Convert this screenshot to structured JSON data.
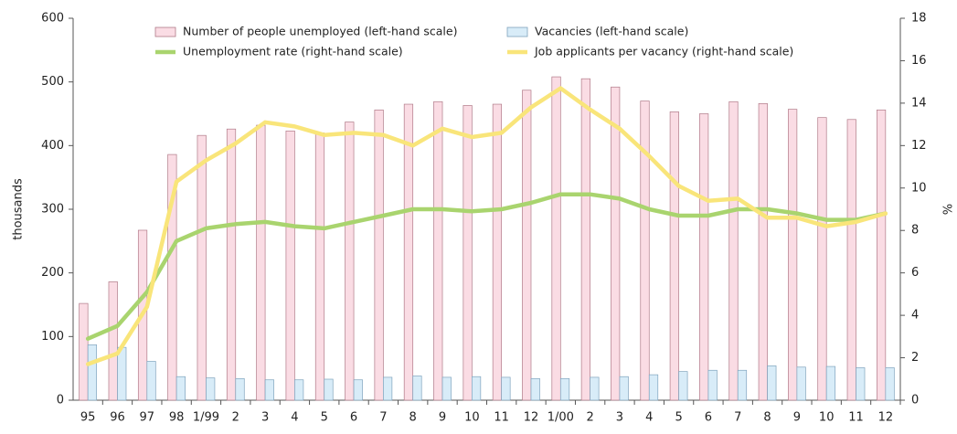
{
  "chart_data": {
    "type": "bar",
    "y_label": "thousands",
    "y2_label": "%",
    "categories": [
      "95",
      "96",
      "97",
      "98",
      "1/99",
      "2",
      "3",
      "4",
      "5",
      "6",
      "7",
      "8",
      "9",
      "10",
      "11",
      "12",
      "1/00",
      "2",
      "3",
      "4",
      "5",
      "6",
      "7",
      "8",
      "9",
      "10",
      "11",
      "12"
    ],
    "series": [
      {
        "name": "Number of people unemployed (left-hand scale)",
        "type": "bar",
        "color": "#fadce4",
        "values": [
          152,
          186,
          267,
          386,
          416,
          426,
          432,
          423,
          420,
          437,
          456,
          465,
          469,
          463,
          465,
          487,
          508,
          505,
          492,
          470,
          453,
          450,
          469,
          466,
          457,
          444,
          441,
          456
        ]
      },
      {
        "name": "Vacancies (left-hand scale)",
        "type": "bar",
        "color": "#d8ecf8",
        "values": [
          87,
          83,
          61,
          37,
          35,
          34,
          32,
          32,
          33,
          32,
          36,
          38,
          36,
          37,
          36,
          34,
          34,
          36,
          37,
          40,
          45,
          47,
          47,
          54,
          52,
          53,
          51,
          51
        ]
      },
      {
        "name": "Unemployment rate (right-hand scale)",
        "type": "line",
        "axis": "y2",
        "color": "#a9d46e",
        "values": [
          2.9,
          3.5,
          5.1,
          7.5,
          8.1,
          8.3,
          8.4,
          8.2,
          8.1,
          8.4,
          8.7,
          9.0,
          9.0,
          8.9,
          9.0,
          9.3,
          9.7,
          9.7,
          9.5,
          9.0,
          8.7,
          8.7,
          9.0,
          9.0,
          8.8,
          8.5,
          8.5,
          8.8
        ]
      },
      {
        "name": "Job applicants per vacancy (right-hand scale)",
        "type": "line",
        "axis": "y2",
        "color": "#f9e57a",
        "values": [
          1.7,
          2.2,
          4.4,
          10.3,
          11.3,
          12.1,
          13.1,
          12.9,
          12.5,
          12.6,
          12.5,
          12.0,
          12.8,
          12.4,
          12.6,
          13.8,
          14.7,
          13.7,
          12.8,
          11.5,
          10.1,
          9.4,
          9.5,
          8.6,
          8.6,
          8.2,
          8.4,
          8.8
        ]
      }
    ],
    "ylim": [
      0,
      600
    ],
    "yticks": [
      0,
      100,
      200,
      300,
      400,
      500,
      600
    ],
    "y2lim": [
      0,
      18
    ],
    "y2ticks": [
      0,
      2,
      4,
      6,
      8,
      10,
      12,
      14,
      16,
      18
    ]
  }
}
